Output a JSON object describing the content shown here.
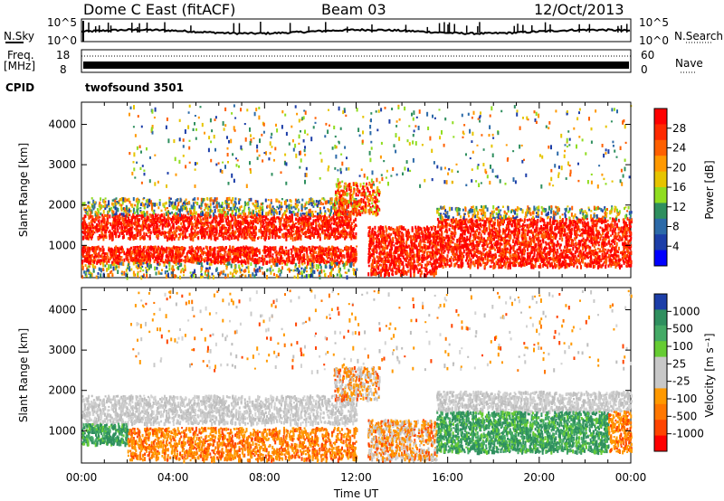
{
  "header": {
    "station": "Dome C East (fitACF)",
    "beam": "Beam 03",
    "date": "12/Oct/2013"
  },
  "side_labels": {
    "nsky": "N.Sky",
    "nsky_hi": "10^5",
    "nsky_lo": "10^0",
    "nsearch": "N.Search",
    "nsearch_hi": "10^5",
    "nsearch_lo": "10^0",
    "freq": "Freq.",
    "freq_unit": "[MHz]",
    "freq_hi": "18",
    "freq_lo": "8",
    "nave": "Nave",
    "nave_hi": "60",
    "nave_lo": "0",
    "cpid": "CPID",
    "cpid_value": "twofsound 3501"
  },
  "chart_data": [
    {
      "type": "line",
      "name": "noise-panel",
      "y_left_ticks": [
        "10^5",
        "10^0"
      ],
      "y_right_ticks": [
        "10^5",
        "10^0"
      ],
      "x_range": [
        0,
        24
      ]
    },
    {
      "type": "line",
      "name": "frequency-panel",
      "y_left_ticks": [
        "18",
        "8"
      ],
      "y_right_ticks": [
        "60",
        "0"
      ],
      "x_range": [
        0,
        24
      ]
    },
    {
      "type": "heatmap",
      "name": "power-panel",
      "ylabel": "Slant Range [km]",
      "yticks": [
        1000,
        2000,
        3000,
        4000
      ],
      "ylim": [
        200,
        4550
      ],
      "xlim": [
        0,
        24
      ],
      "colorbar": {
        "label": "Power [dB]",
        "ticks": [
          "28",
          "24",
          "20",
          "16",
          "12",
          "8",
          "4"
        ],
        "colors": [
          "#ff0000",
          "#ff2a00",
          "#ff6000",
          "#ff9900",
          "#e6c400",
          "#90dd20",
          "#2f8f5f",
          "#2c6aa8",
          "#1c3ea8",
          "#0000ff"
        ]
      }
    },
    {
      "type": "heatmap",
      "name": "velocity-panel",
      "ylabel": "Slant Range [km]",
      "yticks": [
        1000,
        2000,
        3000,
        4000
      ],
      "ylim": [
        200,
        4550
      ],
      "xlim": [
        0,
        24
      ],
      "xlabel": "Time UT",
      "xticks": [
        "00:00",
        "04:00",
        "08:00",
        "12:00",
        "16:00",
        "20:00",
        "00:00"
      ],
      "colorbar": {
        "label": "Velocity [m s⁻¹]",
        "ticks": [
          "1000",
          "500",
          "100",
          "25",
          "-25",
          "-100",
          "-500",
          "-1000"
        ],
        "colors": [
          "#1c3ea8",
          "#2f8f5f",
          "#44aa66",
          "#66cc33",
          "#c8c8c8",
          "#c8c8c8",
          "#ff9900",
          "#ff7700",
          "#ff4400",
          "#ff0000"
        ]
      }
    }
  ]
}
